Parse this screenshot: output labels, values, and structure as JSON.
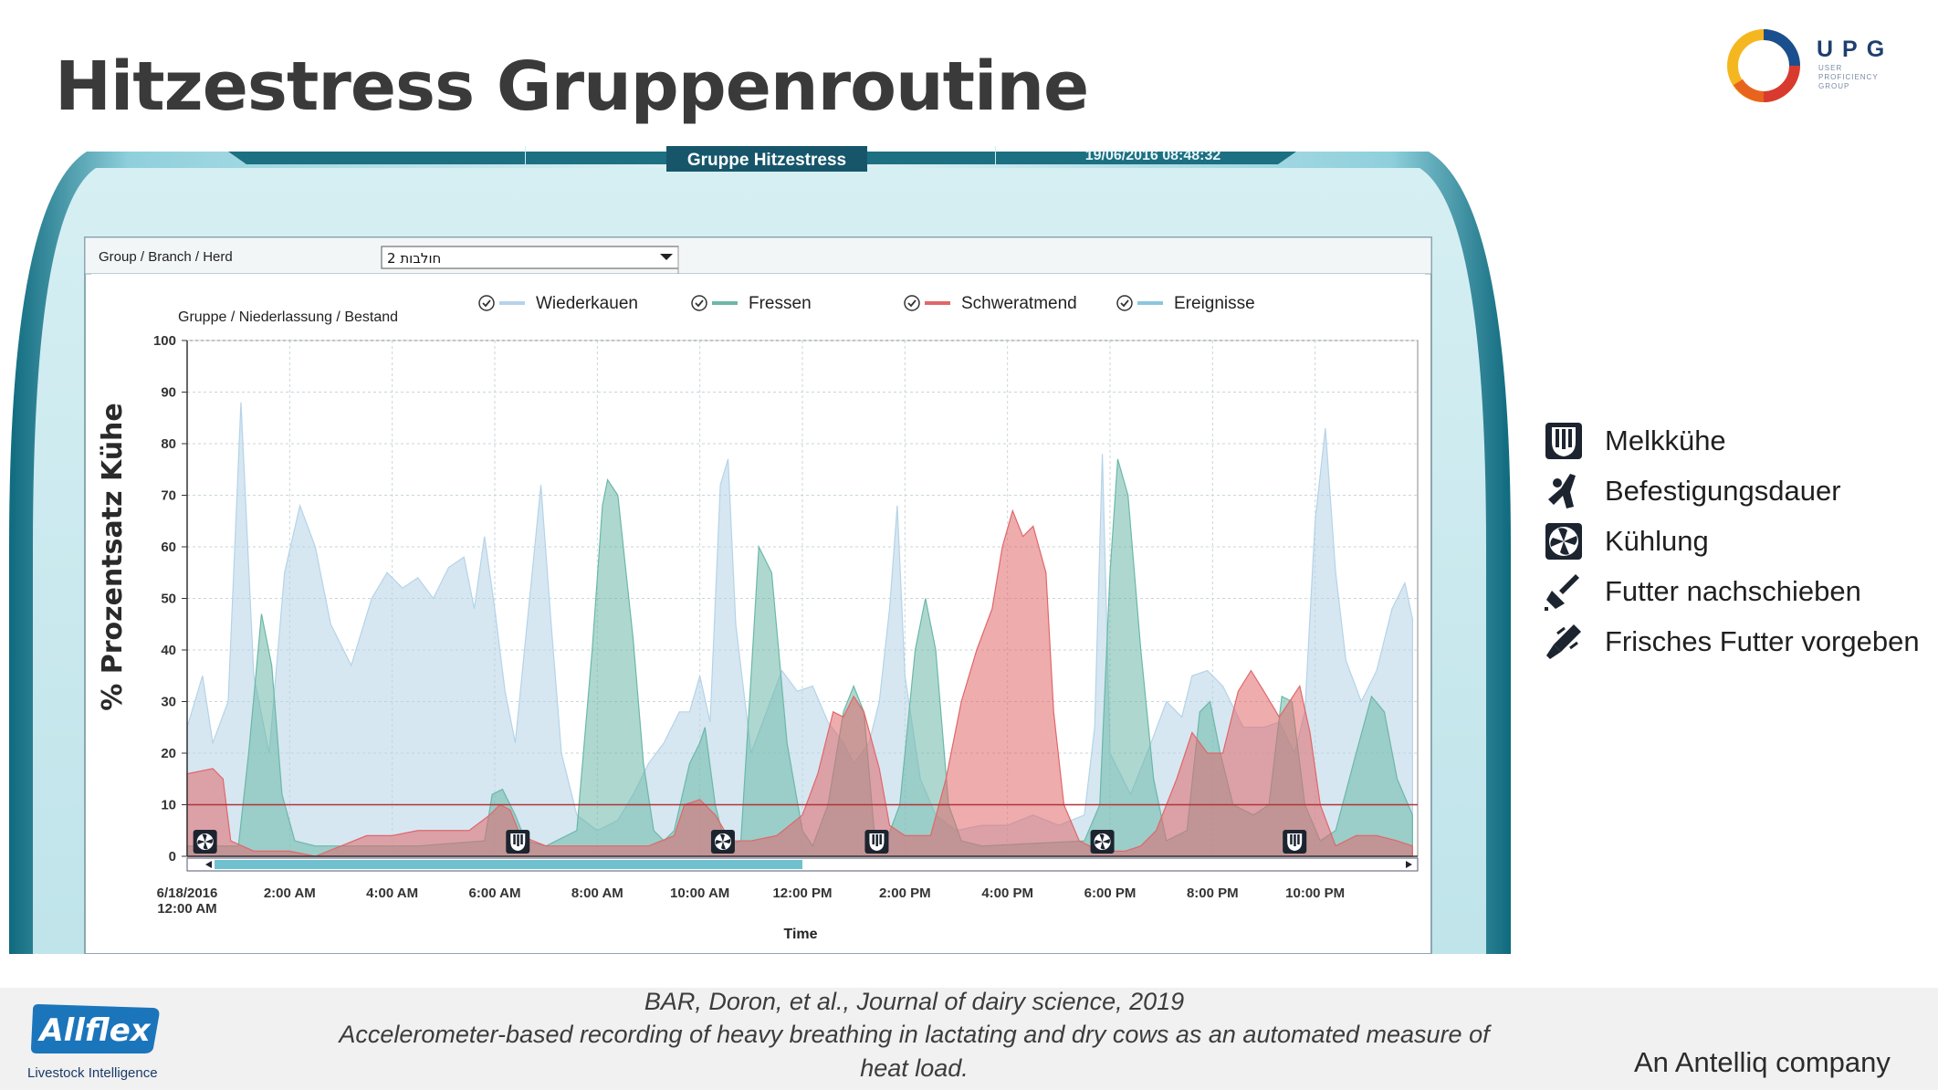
{
  "slide": {
    "title": "Hitzestress Gruppenroutine",
    "logo_letters": "UPG",
    "logo_subtitle": [
      "USER",
      "PROFICIENCY",
      "GROUP"
    ]
  },
  "app": {
    "tab_title": "Gruppe Hitzestress",
    "timestamp": "19/06/2016 08:48:32",
    "filter_label": "Group / Branch / Herd",
    "filter_value": "חולבות 2",
    "chart_subtitle": "Gruppe / Niederlassung / Bestand"
  },
  "chart_data": {
    "type": "area",
    "title": "",
    "xlabel": "Time",
    "ylabel": "% Prozentsatz Kühe",
    "ylim": [
      0,
      100
    ],
    "yticks": [
      0,
      10,
      20,
      30,
      40,
      50,
      60,
      70,
      80,
      90,
      100
    ],
    "xlim": [
      "6/18/2016 00:00",
      "6/18/2016 23:59"
    ],
    "xticks": [
      {
        "label": "6/18/2016",
        "label2": "12:00 AM",
        "hour": 0
      },
      {
        "label": "2:00 AM",
        "hour": 2
      },
      {
        "label": "4:00 AM",
        "hour": 4
      },
      {
        "label": "6:00 AM",
        "hour": 6
      },
      {
        "label": "8:00 AM",
        "hour": 8
      },
      {
        "label": "10:00 AM",
        "hour": 10
      },
      {
        "label": "12:00 PM",
        "hour": 12
      },
      {
        "label": "2:00 PM",
        "hour": 14
      },
      {
        "label": "4:00 PM",
        "hour": 16
      },
      {
        "label": "6:00 PM",
        "hour": 18
      },
      {
        "label": "8:00 PM",
        "hour": 20
      },
      {
        "label": "10:00 PM",
        "hour": 22
      }
    ],
    "grid": true,
    "legend_position": "top",
    "reference_line": 10,
    "series": [
      {
        "name": "Wiederkauen",
        "color": "#b5d3e8",
        "points": [
          [
            0,
            25
          ],
          [
            0.3,
            35
          ],
          [
            0.5,
            22
          ],
          [
            0.8,
            30
          ],
          [
            1.05,
            88
          ],
          [
            1.3,
            35
          ],
          [
            1.6,
            20
          ],
          [
            1.9,
            55
          ],
          [
            2.2,
            68
          ],
          [
            2.5,
            60
          ],
          [
            2.8,
            45
          ],
          [
            3.2,
            37
          ],
          [
            3.6,
            50
          ],
          [
            3.9,
            55
          ],
          [
            4.2,
            52
          ],
          [
            4.5,
            54
          ],
          [
            4.8,
            50
          ],
          [
            5.1,
            56
          ],
          [
            5.4,
            58
          ],
          [
            5.6,
            48
          ],
          [
            5.8,
            62
          ],
          [
            6.0,
            48
          ],
          [
            6.2,
            32
          ],
          [
            6.4,
            22
          ],
          [
            6.7,
            52
          ],
          [
            6.9,
            72
          ],
          [
            7.1,
            45
          ],
          [
            7.3,
            20
          ],
          [
            7.6,
            8
          ],
          [
            8.0,
            5
          ],
          [
            8.4,
            7
          ],
          [
            8.7,
            12
          ],
          [
            9.0,
            18
          ],
          [
            9.3,
            22
          ],
          [
            9.6,
            28
          ],
          [
            9.8,
            28
          ],
          [
            10.0,
            35
          ],
          [
            10.2,
            26
          ],
          [
            10.4,
            72
          ],
          [
            10.55,
            77
          ],
          [
            10.7,
            45
          ],
          [
            11.0,
            20
          ],
          [
            11.3,
            28
          ],
          [
            11.6,
            36
          ],
          [
            11.9,
            32
          ],
          [
            12.2,
            33
          ],
          [
            12.5,
            26
          ],
          [
            12.8,
            22
          ],
          [
            13.0,
            18
          ],
          [
            13.3,
            22
          ],
          [
            13.5,
            30
          ],
          [
            13.7,
            48
          ],
          [
            13.85,
            68
          ],
          [
            14.0,
            35
          ],
          [
            14.3,
            15
          ],
          [
            14.6,
            8
          ],
          [
            15.0,
            5
          ],
          [
            15.5,
            6
          ],
          [
            16.0,
            6
          ],
          [
            16.5,
            8
          ],
          [
            17.0,
            6
          ],
          [
            17.5,
            8
          ],
          [
            17.7,
            25
          ],
          [
            17.85,
            78
          ],
          [
            18.0,
            20
          ],
          [
            18.4,
            12
          ],
          [
            18.8,
            22
          ],
          [
            19.1,
            30
          ],
          [
            19.4,
            27
          ],
          [
            19.6,
            35
          ],
          [
            19.9,
            36
          ],
          [
            20.2,
            33
          ],
          [
            20.6,
            25
          ],
          [
            21.0,
            25
          ],
          [
            21.3,
            26
          ],
          [
            21.6,
            20
          ],
          [
            21.8,
            28
          ],
          [
            22.0,
            65
          ],
          [
            22.2,
            83
          ],
          [
            22.4,
            55
          ],
          [
            22.6,
            38
          ],
          [
            22.9,
            30
          ],
          [
            23.2,
            36
          ],
          [
            23.5,
            48
          ],
          [
            23.75,
            53
          ],
          [
            23.9,
            46
          ]
        ]
      },
      {
        "name": "Fressen",
        "color": "#6bb8a8",
        "points": [
          [
            0,
            2
          ],
          [
            1.0,
            2
          ],
          [
            1.2,
            20
          ],
          [
            1.45,
            47
          ],
          [
            1.65,
            37
          ],
          [
            1.85,
            12
          ],
          [
            2.1,
            3
          ],
          [
            2.5,
            2
          ],
          [
            4.5,
            2
          ],
          [
            5.8,
            3
          ],
          [
            5.95,
            12
          ],
          [
            6.15,
            13
          ],
          [
            6.4,
            8
          ],
          [
            6.6,
            3
          ],
          [
            7.0,
            2
          ],
          [
            7.6,
            5
          ],
          [
            7.9,
            40
          ],
          [
            8.1,
            68
          ],
          [
            8.2,
            73
          ],
          [
            8.4,
            70
          ],
          [
            8.7,
            42
          ],
          [
            8.9,
            18
          ],
          [
            9.1,
            5
          ],
          [
            9.3,
            3
          ],
          [
            9.5,
            5
          ],
          [
            9.8,
            18
          ],
          [
            10.0,
            22
          ],
          [
            10.1,
            25
          ],
          [
            10.3,
            10
          ],
          [
            10.5,
            2
          ],
          [
            10.8,
            3
          ],
          [
            11.0,
            35
          ],
          [
            11.15,
            60
          ],
          [
            11.4,
            55
          ],
          [
            11.7,
            22
          ],
          [
            12.0,
            5
          ],
          [
            12.2,
            2
          ],
          [
            12.5,
            10
          ],
          [
            12.8,
            28
          ],
          [
            13.0,
            33
          ],
          [
            13.2,
            28
          ],
          [
            13.4,
            5
          ],
          [
            13.6,
            2
          ],
          [
            13.9,
            10
          ],
          [
            14.2,
            40
          ],
          [
            14.4,
            50
          ],
          [
            14.6,
            40
          ],
          [
            14.85,
            10
          ],
          [
            15.1,
            3
          ],
          [
            15.5,
            2
          ],
          [
            17.5,
            3
          ],
          [
            17.8,
            10
          ],
          [
            18.0,
            55
          ],
          [
            18.15,
            77
          ],
          [
            18.35,
            70
          ],
          [
            18.6,
            40
          ],
          [
            18.85,
            15
          ],
          [
            19.1,
            3
          ],
          [
            19.5,
            5
          ],
          [
            19.75,
            28
          ],
          [
            19.95,
            30
          ],
          [
            20.15,
            20
          ],
          [
            20.4,
            10
          ],
          [
            20.8,
            8
          ],
          [
            21.1,
            10
          ],
          [
            21.35,
            31
          ],
          [
            21.55,
            30
          ],
          [
            21.8,
            10
          ],
          [
            22.1,
            3
          ],
          [
            22.4,
            5
          ],
          [
            22.8,
            20
          ],
          [
            23.1,
            31
          ],
          [
            23.35,
            28
          ],
          [
            23.6,
            15
          ],
          [
            23.9,
            8
          ]
        ]
      },
      {
        "name": "Schweratmend",
        "color": "#e0676a",
        "points": [
          [
            0,
            16
          ],
          [
            0.5,
            17
          ],
          [
            0.7,
            15
          ],
          [
            0.85,
            3
          ],
          [
            1.3,
            1
          ],
          [
            2.0,
            1
          ],
          [
            2.5,
            0
          ],
          [
            3.0,
            2
          ],
          [
            3.5,
            4
          ],
          [
            4.0,
            4
          ],
          [
            4.5,
            5
          ],
          [
            5.0,
            5
          ],
          [
            5.5,
            5
          ],
          [
            5.9,
            8
          ],
          [
            6.1,
            10
          ],
          [
            6.3,
            9
          ],
          [
            6.5,
            4
          ],
          [
            7.0,
            2
          ],
          [
            8.0,
            2
          ],
          [
            9.0,
            2
          ],
          [
            9.5,
            4
          ],
          [
            9.7,
            10
          ],
          [
            10.0,
            11
          ],
          [
            10.3,
            8
          ],
          [
            10.6,
            3
          ],
          [
            11.0,
            3
          ],
          [
            11.5,
            4
          ],
          [
            12.0,
            8
          ],
          [
            12.3,
            16
          ],
          [
            12.6,
            28
          ],
          [
            12.8,
            27
          ],
          [
            13.0,
            31
          ],
          [
            13.2,
            28
          ],
          [
            13.5,
            17
          ],
          [
            13.7,
            6
          ],
          [
            14.0,
            4
          ],
          [
            14.5,
            4
          ],
          [
            14.8,
            15
          ],
          [
            15.1,
            30
          ],
          [
            15.4,
            40
          ],
          [
            15.7,
            48
          ],
          [
            15.9,
            60
          ],
          [
            16.1,
            67
          ],
          [
            16.3,
            62
          ],
          [
            16.5,
            64
          ],
          [
            16.75,
            55
          ],
          [
            16.9,
            28
          ],
          [
            17.1,
            10
          ],
          [
            17.4,
            3
          ],
          [
            17.8,
            1
          ],
          [
            18.3,
            1
          ],
          [
            18.6,
            2
          ],
          [
            18.9,
            5
          ],
          [
            19.3,
            15
          ],
          [
            19.6,
            24
          ],
          [
            19.9,
            20
          ],
          [
            20.2,
            20
          ],
          [
            20.5,
            32
          ],
          [
            20.75,
            36
          ],
          [
            21.0,
            32
          ],
          [
            21.3,
            27
          ],
          [
            21.5,
            30
          ],
          [
            21.7,
            33
          ],
          [
            21.9,
            24
          ],
          [
            22.1,
            10
          ],
          [
            22.4,
            2
          ],
          [
            22.8,
            4
          ],
          [
            23.2,
            4
          ],
          [
            23.6,
            3
          ],
          [
            23.9,
            2
          ]
        ]
      },
      {
        "name": "Ereignisse",
        "color": "#8cc6de",
        "points": []
      }
    ],
    "events": [
      {
        "hour": 0.35,
        "type": "kuehlung"
      },
      {
        "hour": 6.45,
        "type": "melkkuehe"
      },
      {
        "hour": 10.45,
        "type": "kuehlung"
      },
      {
        "hour": 13.45,
        "type": "melkkuehe"
      },
      {
        "hour": 17.85,
        "type": "kuehlung"
      },
      {
        "hour": 21.6,
        "type": "melkkuehe"
      }
    ]
  },
  "side_legend": [
    {
      "icon": "melkkuehe-icon",
      "label": "Melkkühe"
    },
    {
      "icon": "befestigungsdauer-icon",
      "label": "Befestigungsdauer"
    },
    {
      "icon": "kuehlung-icon",
      "label": "Kühlung"
    },
    {
      "icon": "futter-nachschieben-icon",
      "label": "Futter nachschieben"
    },
    {
      "icon": "frisches-futter-icon",
      "label": "Frisches Futter vorgeben"
    }
  ],
  "footer": {
    "citation_line1": "BAR, Doron, et al., Journal of dairy science, 2019",
    "citation_line2": "Accelerometer-based recording of heavy breathing in lactating and dry cows as an automated measure of",
    "citation_line3": "heat load.",
    "allflex_logo": "Allflex",
    "allflex_tagline": "Livestock Intelligence",
    "antelliq": "An Antelliq company"
  }
}
